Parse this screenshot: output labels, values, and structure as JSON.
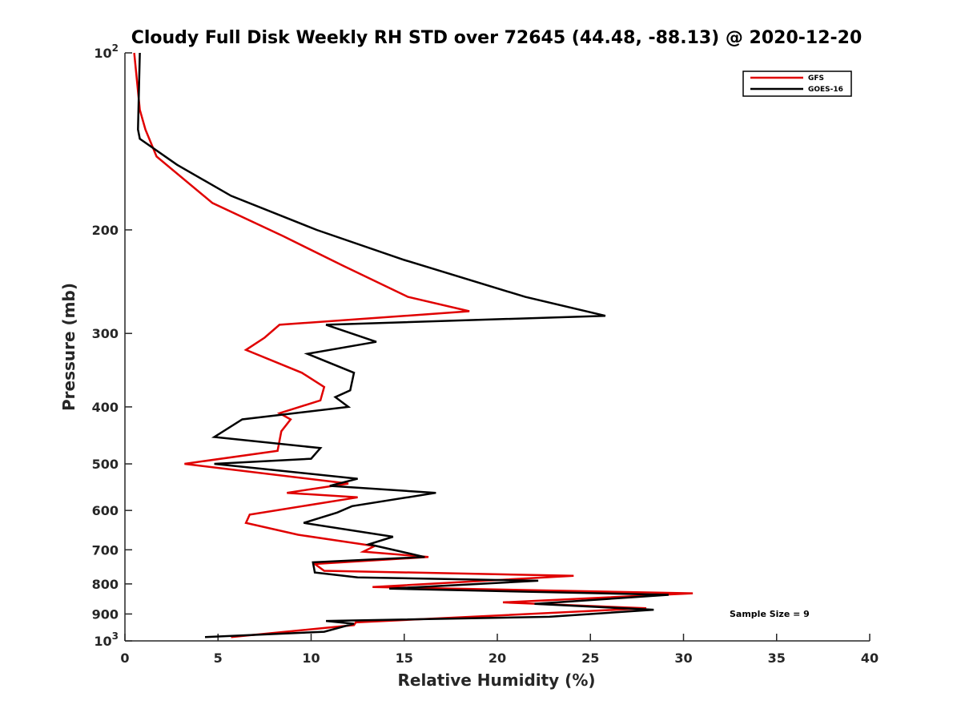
{
  "chart_data": {
    "type": "line",
    "title": "Cloudy Full Disk Weekly RH STD over 72645 (44.48, -88.13) @ 2020-12-20",
    "xlabel": "Relative Humidity (%)",
    "ylabel": "Pressure (mb)",
    "xlim": [
      0,
      40
    ],
    "ylim": [
      100,
      1000
    ],
    "y_scale": "log",
    "y_reversed": true,
    "x_ticks": [
      {
        "value": 0,
        "label": "0"
      },
      {
        "value": 5,
        "label": "5"
      },
      {
        "value": 10,
        "label": "10"
      },
      {
        "value": 15,
        "label": "15"
      },
      {
        "value": 20,
        "label": "20"
      },
      {
        "value": 25,
        "label": "25"
      },
      {
        "value": 30,
        "label": "30"
      },
      {
        "value": 35,
        "label": "35"
      },
      {
        "value": 40,
        "label": "40"
      }
    ],
    "y_ticks": [
      {
        "value": 100,
        "base": "10",
        "exp": "2"
      },
      {
        "value": 200,
        "label": "200"
      },
      {
        "value": 300,
        "label": "300"
      },
      {
        "value": 400,
        "label": "400"
      },
      {
        "value": 500,
        "label": "500"
      },
      {
        "value": 600,
        "label": "600"
      },
      {
        "value": 700,
        "label": "700"
      },
      {
        "value": 800,
        "label": "800"
      },
      {
        "value": 900,
        "label": "900"
      },
      {
        "value": 1000,
        "base": "10",
        "exp": "3"
      }
    ],
    "grid": false,
    "legend_position": "top-right",
    "series": [
      {
        "name": "GFS",
        "color": "#e00000",
        "points": [
          [
            0.5,
            100
          ],
          [
            0.8,
            125
          ],
          [
            1.1,
            135
          ],
          [
            1.7,
            150
          ],
          [
            4.7,
            180
          ],
          [
            8.5,
            205
          ],
          [
            11.7,
            230
          ],
          [
            15.2,
            260
          ],
          [
            18.5,
            275
          ],
          [
            8.3,
            290
          ],
          [
            7.5,
            305
          ],
          [
            6.5,
            320
          ],
          [
            9.5,
            350
          ],
          [
            10.7,
            370
          ],
          [
            10.5,
            390
          ],
          [
            8.3,
            410
          ],
          [
            8.9,
            420
          ],
          [
            8.4,
            440
          ],
          [
            8.2,
            475
          ],
          [
            3.2,
            500
          ],
          [
            12.0,
            540
          ],
          [
            8.7,
            560
          ],
          [
            12.5,
            570
          ],
          [
            6.7,
            610
          ],
          [
            6.5,
            630
          ],
          [
            9.3,
            660
          ],
          [
            13.4,
            690
          ],
          [
            12.8,
            705
          ],
          [
            16.3,
            720
          ],
          [
            10.2,
            740
          ],
          [
            10.7,
            760
          ],
          [
            24.1,
            775
          ],
          [
            13.3,
            810
          ],
          [
            30.5,
            830
          ],
          [
            20.3,
            860
          ],
          [
            28.0,
            880
          ],
          [
            12.4,
            930
          ],
          [
            12.3,
            940
          ],
          [
            5.7,
            985
          ]
        ]
      },
      {
        "name": "GOES-16",
        "color": "#000000",
        "points": [
          [
            0.8,
            100
          ],
          [
            0.7,
            135
          ],
          [
            0.8,
            140
          ],
          [
            2.8,
            155
          ],
          [
            5.7,
            175
          ],
          [
            10.3,
            200
          ],
          [
            15.0,
            225
          ],
          [
            21.5,
            260
          ],
          [
            25.8,
            280
          ],
          [
            10.8,
            290
          ],
          [
            13.5,
            310
          ],
          [
            9.8,
            325
          ],
          [
            12.3,
            350
          ],
          [
            12.1,
            375
          ],
          [
            11.3,
            385
          ],
          [
            12.0,
            400
          ],
          [
            6.3,
            420
          ],
          [
            4.8,
            450
          ],
          [
            10.5,
            470
          ],
          [
            10.0,
            490
          ],
          [
            4.8,
            500
          ],
          [
            12.5,
            530
          ],
          [
            11.0,
            545
          ],
          [
            16.7,
            560
          ],
          [
            12.2,
            590
          ],
          [
            11.4,
            605
          ],
          [
            9.6,
            630
          ],
          [
            14.4,
            665
          ],
          [
            13.1,
            685
          ],
          [
            16.1,
            720
          ],
          [
            10.1,
            735
          ],
          [
            10.2,
            765
          ],
          [
            12.5,
            780
          ],
          [
            22.2,
            790
          ],
          [
            14.2,
            815
          ],
          [
            29.2,
            835
          ],
          [
            22.0,
            865
          ],
          [
            28.4,
            885
          ],
          [
            22.8,
            910
          ],
          [
            10.8,
            925
          ],
          [
            12.3,
            935
          ],
          [
            10.7,
            965
          ],
          [
            4.3,
            985
          ]
        ]
      }
    ],
    "annotation": "Sample Size = 9"
  }
}
